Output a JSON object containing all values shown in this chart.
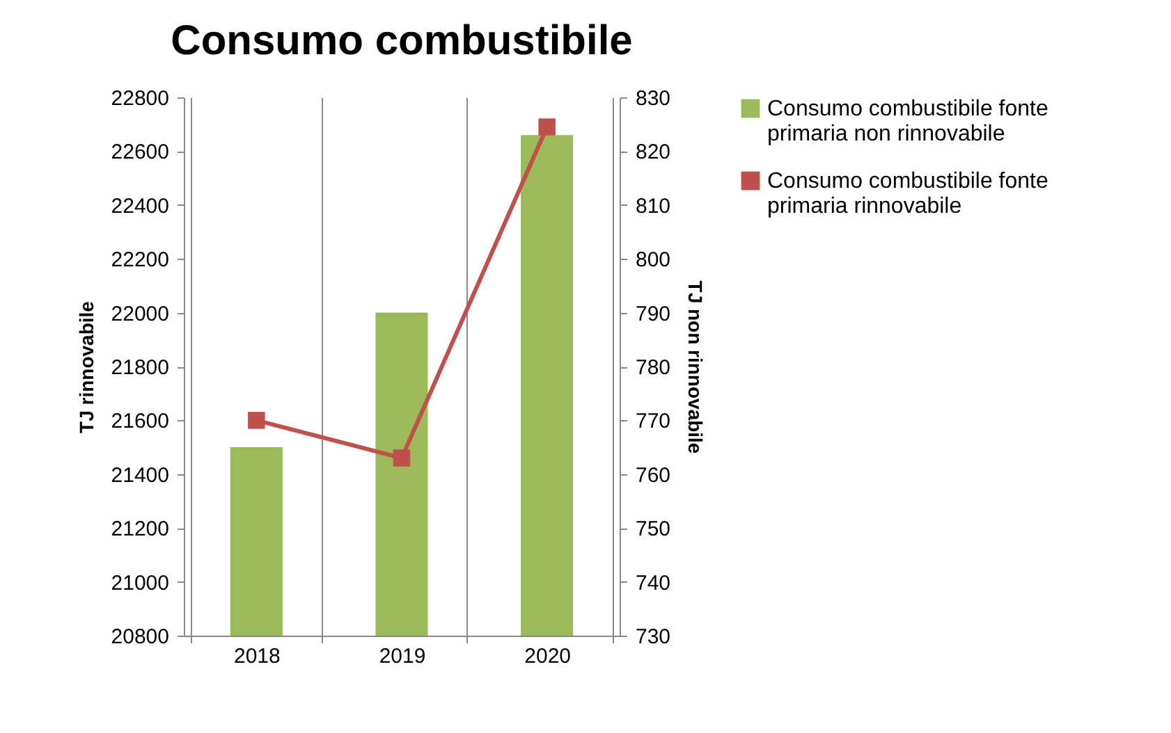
{
  "chart_data": {
    "type": "bar",
    "title": "Consumo combustibile",
    "categories": [
      "2018",
      "2019",
      "2020"
    ],
    "series": [
      {
        "name": "Consumo combustibile fonte primaria non rinnovabile",
        "color": "#9bbb59",
        "values": [
          21500,
          22000,
          22660
        ]
      },
      {
        "name": "Consumo combustibile fonte primaria rinnovabile",
        "type": "line",
        "axis": "y2",
        "color": "#c0504d",
        "values": [
          770,
          763,
          824.5
        ],
        "marker": "square"
      }
    ],
    "ylabel": "TJ  rinnovabile",
    "y2label": "TJ  non rinnovabile",
    "ylim": [
      20800,
      22800
    ],
    "yticks": [
      20800,
      21000,
      21200,
      21400,
      21600,
      21800,
      22000,
      22200,
      22400,
      22600,
      22800
    ],
    "y2lim": [
      730,
      830
    ],
    "y2ticks": [
      730,
      740,
      750,
      760,
      770,
      780,
      790,
      800,
      810,
      820,
      830
    ],
    "grid": "x",
    "legend": "right"
  }
}
